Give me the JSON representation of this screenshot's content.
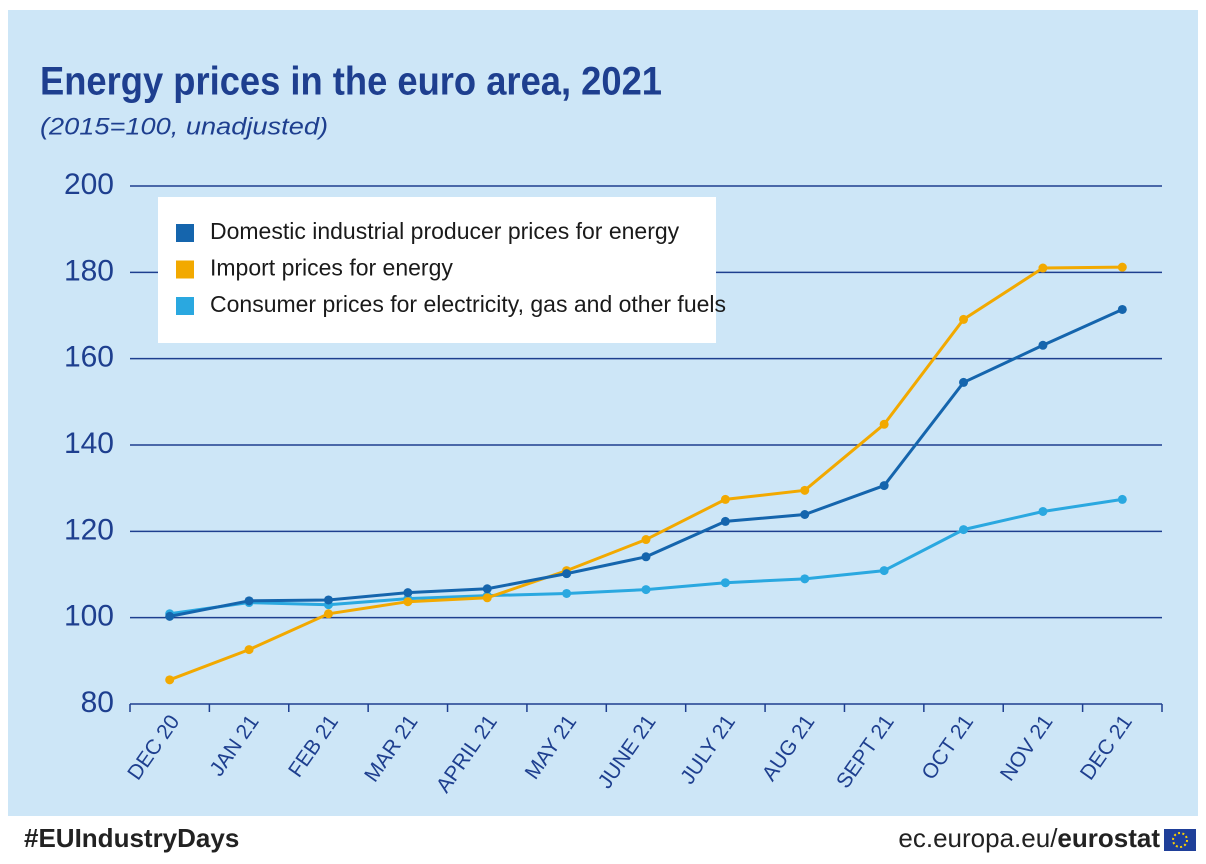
{
  "chart_data": {
    "type": "line",
    "title": "Energy prices in the euro area, 2021",
    "subtitle": "(2015=100, unadjusted)",
    "categories": [
      "DEC 20",
      "JAN 21",
      "FEB 21",
      "MAR 21",
      "APRIL 21",
      "MAY 21",
      "JUNE 21",
      "JULY 21",
      "AUG 21",
      "SEPT 21",
      "OCT 21",
      "NOV 21",
      "DEC 21"
    ],
    "series": [
      {
        "name": "Domestic industrial producer prices for energy",
        "color": "#1565ad",
        "values": [
          100.3,
          103.9,
          104.1,
          105.8,
          106.7,
          110.2,
          114.1,
          122.3,
          123.9,
          130.6,
          154.5,
          163.1,
          171.4
        ]
      },
      {
        "name": "Import prices for energy",
        "color": "#f2a900",
        "values": [
          85.6,
          92.6,
          100.9,
          103.7,
          104.6,
          110.9,
          118.1,
          127.4,
          129.5,
          144.8,
          169.1,
          181.0,
          181.2
        ]
      },
      {
        "name": "Consumer prices for electricity, gas and other fuels",
        "color": "#2aa8e0",
        "values": [
          100.9,
          103.5,
          103.0,
          104.4,
          105.1,
          105.6,
          106.5,
          108.1,
          109.0,
          110.9,
          120.4,
          124.6,
          127.4
        ]
      }
    ],
    "ylim": [
      80,
      200
    ],
    "yticks": [
      80,
      100,
      120,
      140,
      160,
      180,
      200
    ],
    "grid": true,
    "legend": "top-left"
  },
  "footer": {
    "hashtag": "#EUIndustryDays",
    "site_prefix": "ec.europa.eu/",
    "site_brand": "eurostat"
  }
}
